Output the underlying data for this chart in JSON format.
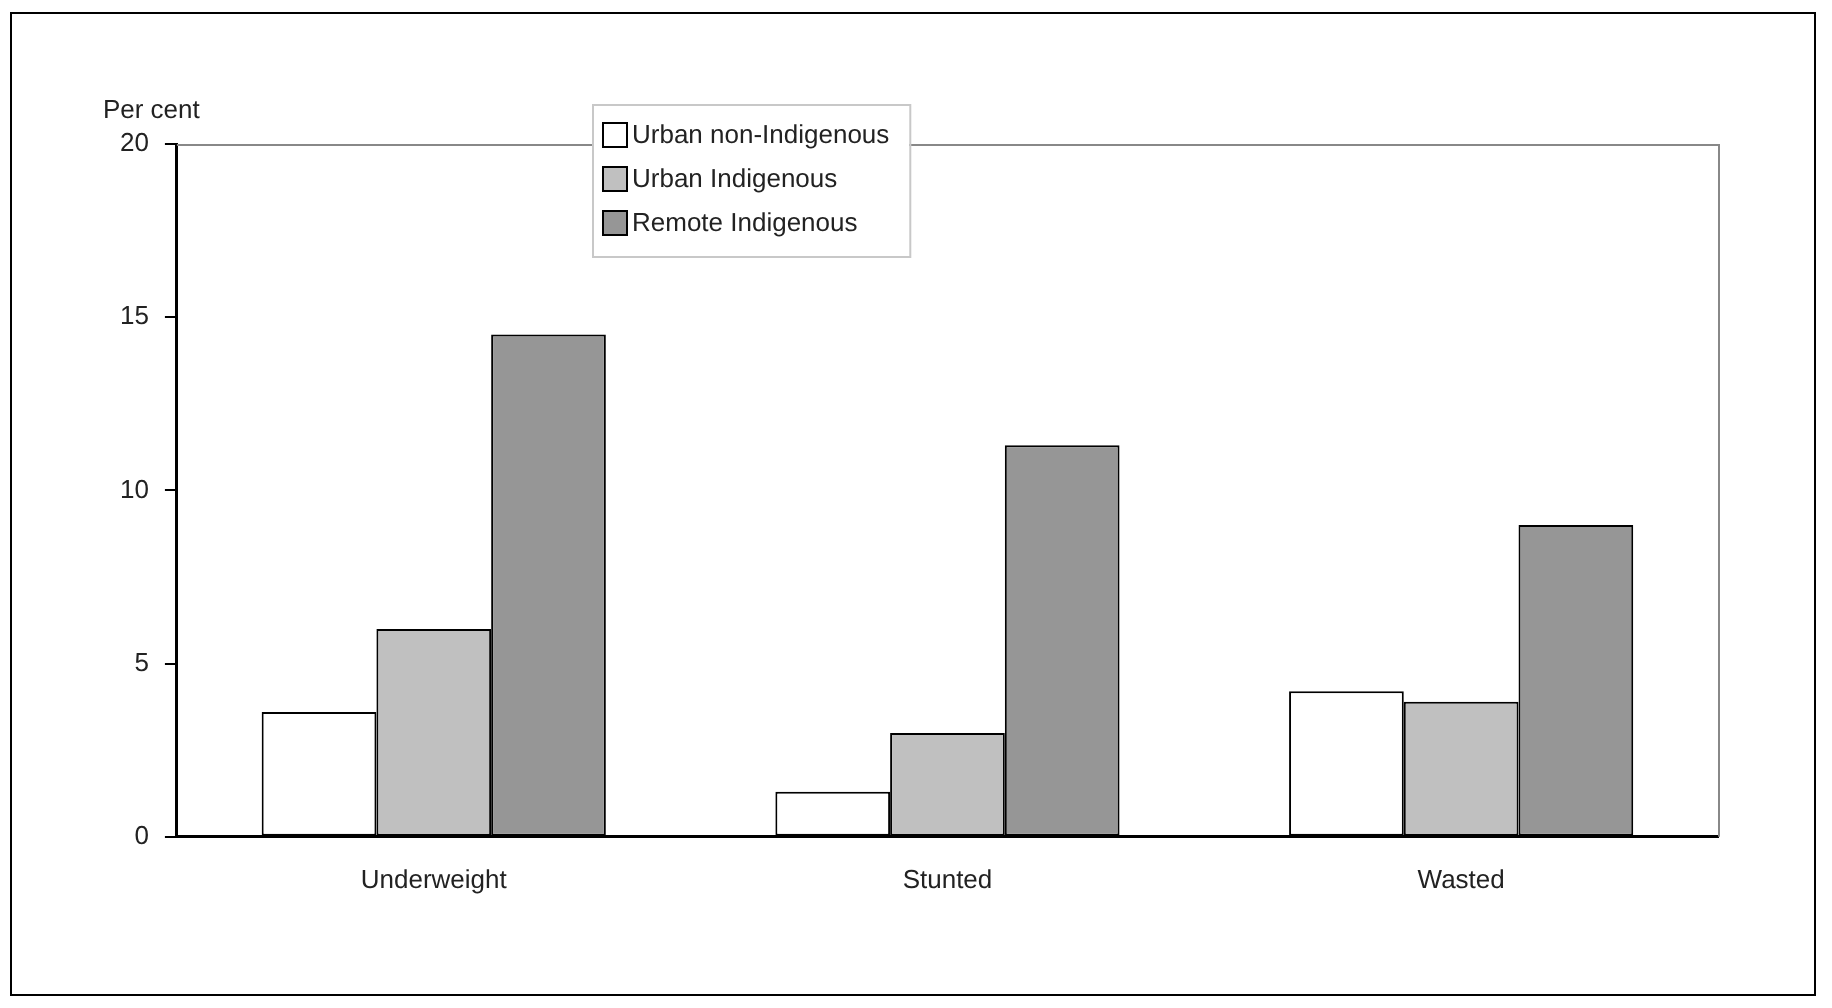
{
  "chart_data": {
    "type": "bar",
    "ylabel": "Per cent",
    "categories": [
      "Underweight",
      "Stunted",
      "Wasted"
    ],
    "series": [
      {
        "name": "Urban non-Indigenous",
        "color": "#ffffff",
        "values": [
          3.6,
          1.3,
          4.2
        ]
      },
      {
        "name": "Urban Indigenous",
        "color": "#c0c0c0",
        "values": [
          6.0,
          3.0,
          3.9
        ]
      },
      {
        "name": "Remote Indigenous",
        "color": "#969696",
        "values": [
          14.5,
          11.3,
          9.0
        ]
      }
    ],
    "ylim": [
      0,
      20
    ],
    "yticks": [
      0,
      5,
      10,
      15,
      20
    ],
    "grid": false,
    "legend": "top"
  }
}
